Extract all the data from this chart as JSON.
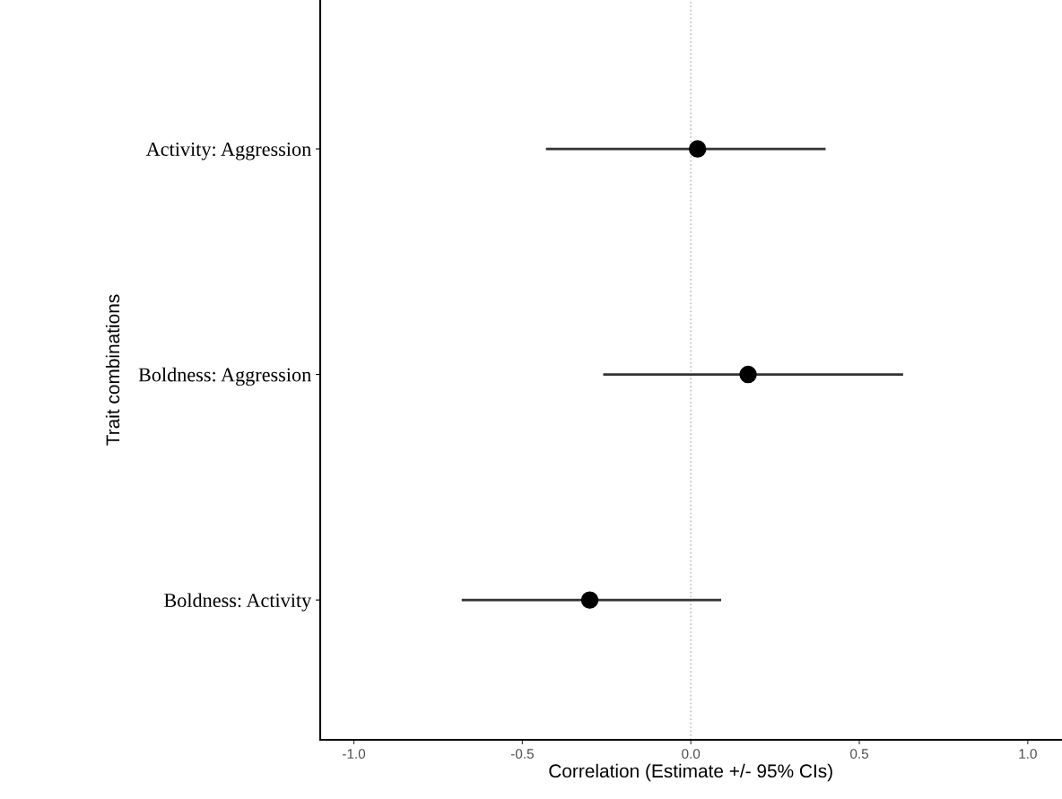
{
  "chart_data": {
    "type": "scatter",
    "orientation": "horizontal",
    "xlabel": "Correlation (Estimate +/- 95% CIs)",
    "ylabel": "Trait combinations",
    "categories": [
      "Activity: Aggression",
      "Boldness: Aggression",
      "Boldness: Activity"
    ],
    "series": [
      {
        "color": "#000000",
        "values": [
          0.02,
          0.17,
          -0.3
        ],
        "errors": [
          [
            -0.43,
            0.4
          ],
          [
            -0.26,
            0.63
          ],
          [
            -0.68,
            0.09
          ]
        ]
      }
    ],
    "xlim": [
      -1.1,
      1.1
    ],
    "xticks": [
      {
        "value": -1.0,
        "label": "-1.0"
      },
      {
        "value": -0.5,
        "label": "-0.5"
      },
      {
        "value": 0.0,
        "label": "0.0"
      },
      {
        "value": 0.5,
        "label": "0.5"
      },
      {
        "value": 1.0,
        "label": "1.0"
      }
    ],
    "ref_lines": [
      {
        "axis": "x",
        "value": 0,
        "color": "#c0c0c0",
        "line_style": "dotted"
      }
    ],
    "grid": false,
    "legend": false,
    "marker": "circle"
  }
}
